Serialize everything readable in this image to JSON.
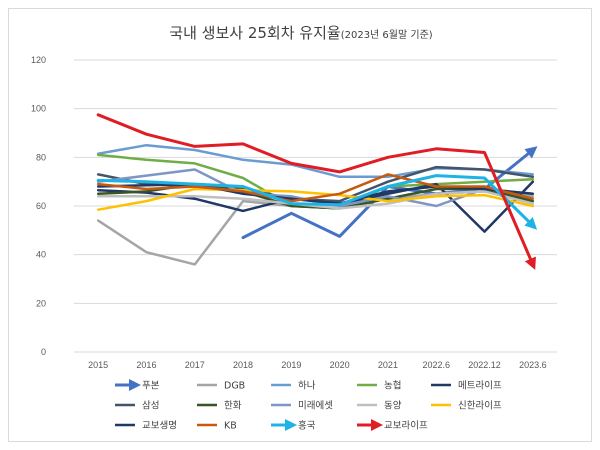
{
  "chart_data": {
    "type": "line",
    "title": "국내 생보사 25회차 유지율",
    "subtitle": "(2023년 6월말 기준)",
    "categories": [
      "2015",
      "2016",
      "2017",
      "2018",
      "2019",
      "2020",
      "2021",
      "2022.6",
      "2022.12",
      "2023.6"
    ],
    "ylim": [
      0,
      120
    ],
    "yticks": [
      0,
      20,
      40,
      60,
      80,
      100,
      120
    ],
    "grid": true,
    "legend_position": "bottom",
    "series": [
      {
        "name": "푸본",
        "color": "#4472c4",
        "arrow": true,
        "values": [
          null,
          null,
          null,
          47,
          57,
          47.5,
          68,
          65,
          67,
          83
        ]
      },
      {
        "name": "DGB",
        "color": "#a5a5a5",
        "arrow": false,
        "values": [
          54,
          41,
          36,
          62,
          60,
          59,
          63,
          65,
          66,
          64
        ]
      },
      {
        "name": "하나",
        "color": "#6a9bd1",
        "arrow": false,
        "values": [
          81.5,
          85,
          83,
          79,
          77,
          72,
          72,
          75.5,
          75,
          73
        ]
      },
      {
        "name": "농협",
        "color": "#70ad47",
        "arrow": false,
        "values": [
          81,
          79,
          77.5,
          71.5,
          60,
          59,
          68,
          69,
          70,
          71
        ]
      },
      {
        "name": "메트라이프",
        "color": "#1f3864",
        "arrow": false,
        "values": [
          66.5,
          65.5,
          63,
          58,
          63,
          61,
          65,
          69,
          49.5,
          70
        ]
      },
      {
        "name": "삼성",
        "color": "#44546a",
        "arrow": false,
        "values": [
          73,
          69,
          68,
          67,
          63,
          62,
          70,
          76,
          75,
          72
        ]
      },
      {
        "name": "한화",
        "color": "#375623",
        "arrow": false,
        "values": [
          65,
          66,
          69,
          66,
          60,
          59,
          63,
          67,
          67,
          62
        ]
      },
      {
        "name": "미래에셋",
        "color": "#7f96c4",
        "arrow": false,
        "values": [
          70,
          72.5,
          75,
          65,
          64,
          60,
          64,
          60,
          67,
          65
        ]
      },
      {
        "name": "동양",
        "color": "#bfbfbf",
        "arrow": false,
        "values": [
          64,
          64,
          64,
          63,
          61,
          59,
          61,
          65,
          66,
          61
        ]
      },
      {
        "name": "신한라이프",
        "color": "#ffc000",
        "arrow": false,
        "values": [
          58.5,
          62,
          67,
          66.5,
          66,
          64.5,
          62,
          64,
          64.5,
          60
        ]
      },
      {
        "name": "교보생명",
        "color": "#203864",
        "arrow": false,
        "values": [
          68,
          68.5,
          69,
          65,
          63,
          61,
          66,
          68,
          67,
          65
        ]
      },
      {
        "name": "KB",
        "color": "#c55a11",
        "arrow": false,
        "values": [
          69,
          67,
          68,
          66,
          62,
          65,
          73,
          68,
          68,
          63
        ]
      },
      {
        "name": "흥국",
        "color": "#1fb3e5",
        "arrow": true,
        "values": [
          70.5,
          70,
          69,
          68,
          61,
          60.5,
          68,
          72.5,
          71.5,
          52
        ]
      },
      {
        "name": "교보라이프",
        "color": "#e01c24",
        "arrow": true,
        "values": [
          97.5,
          89.5,
          84.5,
          85.5,
          77.5,
          74,
          80,
          83.5,
          82,
          36
        ]
      }
    ]
  }
}
